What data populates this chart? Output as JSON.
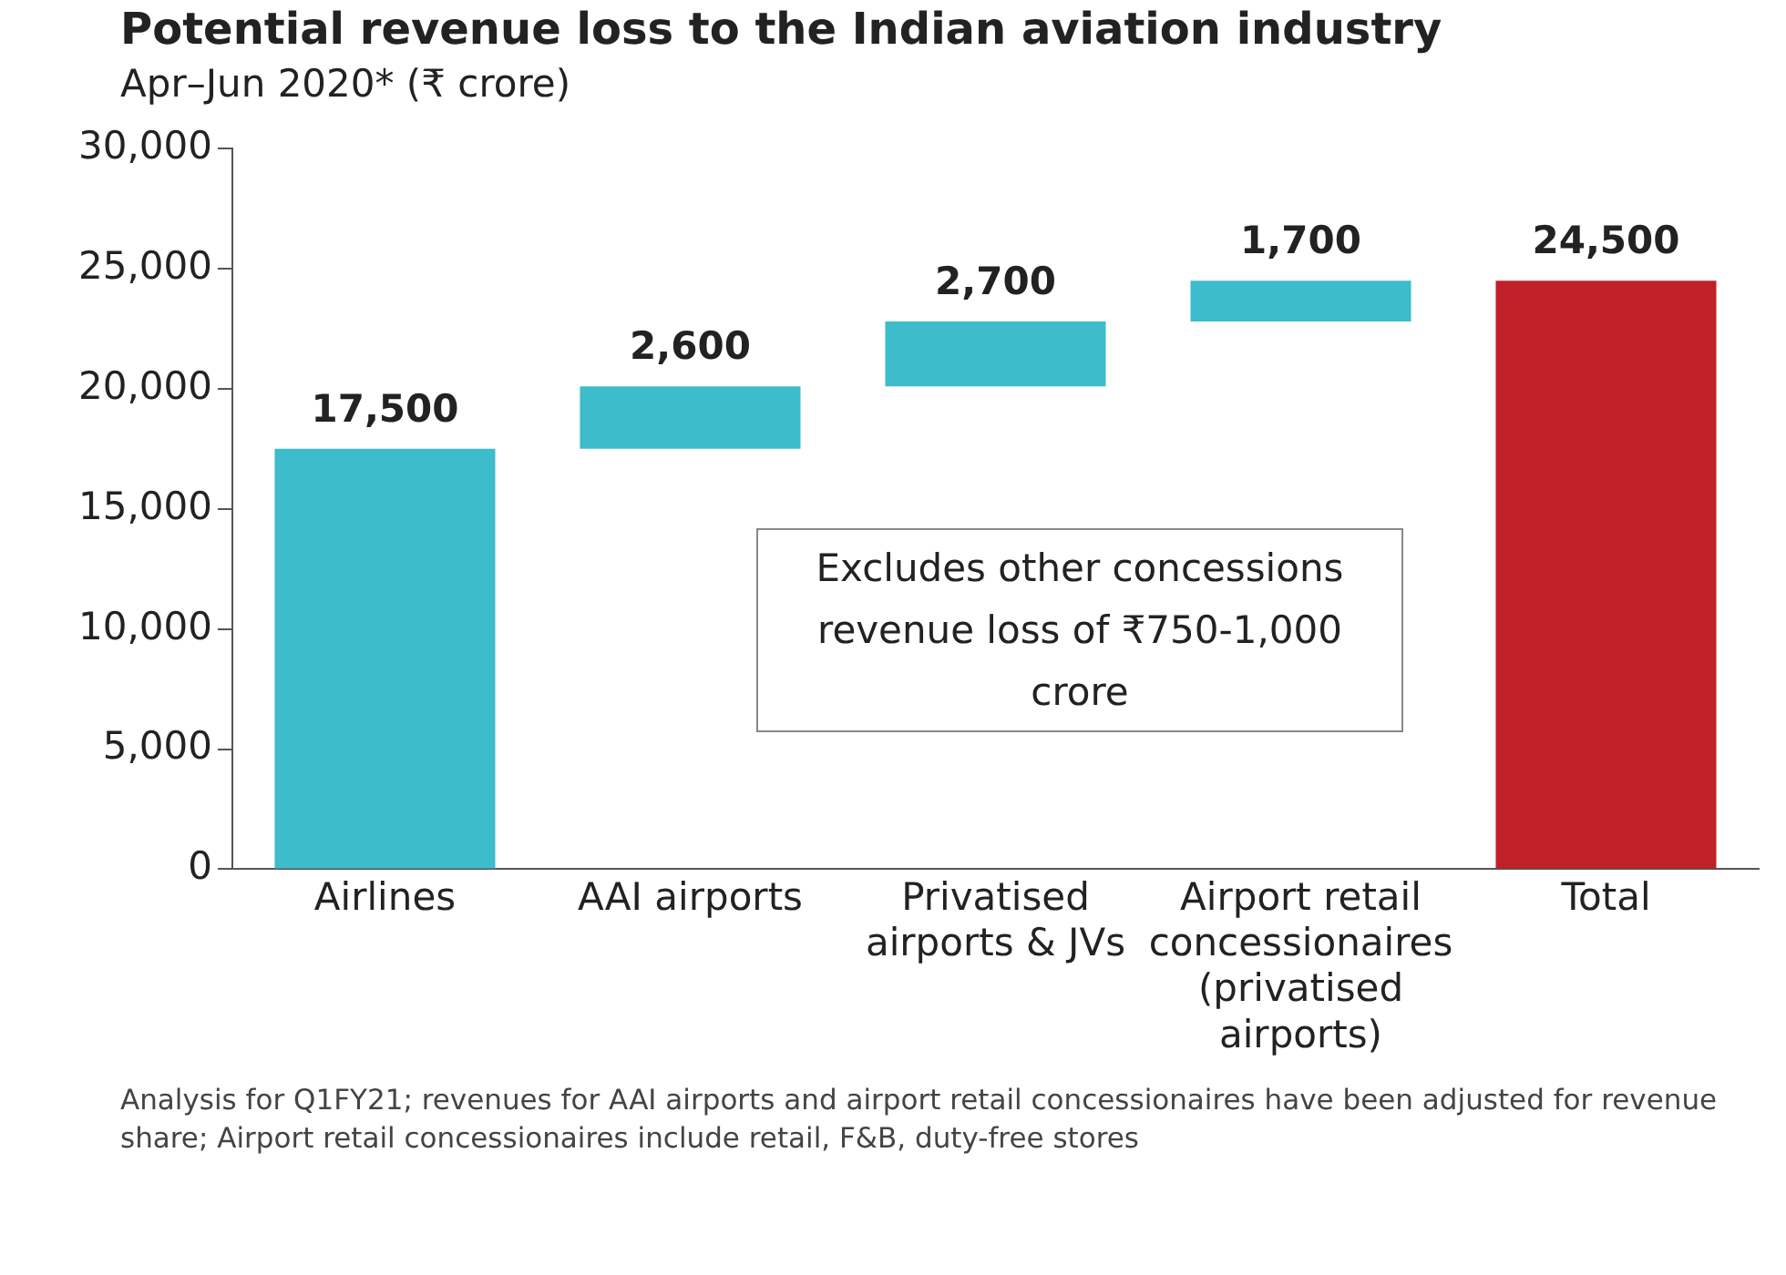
{
  "chart_data": {
    "type": "bar",
    "title": "Potential revenue loss to the Indian aviation industry",
    "subtitle": "Apr–Jun 2020* (₹ crore)",
    "categories": [
      "Airlines",
      "AAI airports",
      "Privatised airports & JVs",
      "Airport retail concessionaires (privatised airports)",
      "Total"
    ],
    "values": [
      17500,
      2600,
      2700,
      1700,
      24500
    ],
    "base": [
      0,
      17500,
      20100,
      22800,
      0
    ],
    "colors": [
      "#3dbccb",
      "#3dbccb",
      "#3dbccb",
      "#3dbccb",
      "#c0202a"
    ],
    "ylim": [
      0,
      30000
    ],
    "yticks": [
      {
        "value": 0,
        "label": "0"
      },
      {
        "value": 5000,
        "label": "5,000"
      },
      {
        "value": 10000,
        "label": "10,000"
      },
      {
        "value": 15000,
        "label": "15,000"
      },
      {
        "value": 20000,
        "label": "20,000"
      },
      {
        "value": 25000,
        "label": "25,000"
      },
      {
        "value": 30000,
        "label": "30,000"
      }
    ],
    "value_labels": [
      "17,500",
      "2,600",
      "2,700",
      "1,700",
      "24,500"
    ],
    "grid": false,
    "legend": false,
    "annotations": [
      "Excludes other concessions revenue loss of ₹750-1,000 crore",
      "Analysis for Q1FY21; revenues for AAI airports and airport retail concessionaires have been adjusted for revenue share; Airport retail concessionaires include retail, F&B, duty-free stores"
    ]
  }
}
